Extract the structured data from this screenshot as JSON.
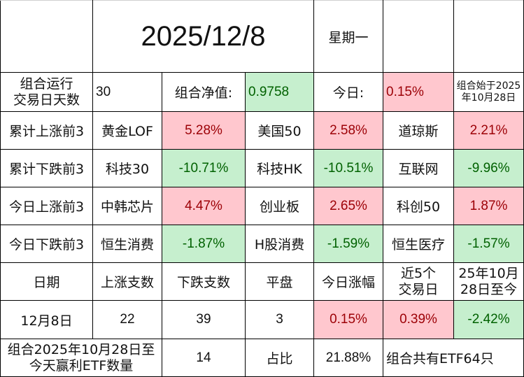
{
  "header": {
    "date": "2025/12/8",
    "weekday": "星期一"
  },
  "summary": {
    "run_days_label_line1": "组合运行",
    "run_days_label_line2": "交易日天数",
    "run_days": "30",
    "nav_label": "组合净值:",
    "nav_value": "0.9758",
    "today_label": "今日:",
    "today_value": "0.15%",
    "start_note_line1": "组合始于2025",
    "start_note_line2": "年10月28日"
  },
  "rank_rows": [
    {
      "label": "累计上涨前3",
      "items": [
        {
          "name": "黄金LOF",
          "value": "5.28%"
        },
        {
          "name": "美国50",
          "value": "2.58%"
        },
        {
          "name": "道琼斯",
          "value": "2.21%"
        }
      ]
    },
    {
      "label": "累计下跌前3",
      "items": [
        {
          "name": "科技30",
          "value": "-10.71%"
        },
        {
          "name": "科技HK",
          "value": "-10.51%"
        },
        {
          "name": "互联网",
          "value": "-9.96%"
        }
      ]
    },
    {
      "label": "今日上涨前3",
      "items": [
        {
          "name": "中韩芯片",
          "value": "4.47%"
        },
        {
          "name": "创业板",
          "value": "2.65%"
        },
        {
          "name": "科创50",
          "value": "1.87%"
        }
      ]
    },
    {
      "label": "今日下跌前3",
      "items": [
        {
          "name": "恒生消费",
          "value": "-1.87%"
        },
        {
          "name": "H股消费",
          "value": "-1.59%"
        },
        {
          "name": "恒生医疗",
          "value": "-1.57%"
        }
      ]
    }
  ],
  "stats": {
    "headers": {
      "date": "日期",
      "up": "上涨支数",
      "down": "下跌支数",
      "flat": "平盘",
      "today": "今日涨幅",
      "last5_line1": "近5个",
      "last5_line2": "交易日",
      "since_line1": "25年10月",
      "since_line2": "28日至今"
    },
    "row": {
      "date": "12月8日",
      "up": "22",
      "down": "39",
      "flat": "3",
      "today": "0.15%",
      "last5": "0.39%",
      "since": "-2.42%"
    }
  },
  "footer": {
    "label_line1": "组合2025年10月28日至",
    "label_line2": "今天赢利ETF数量",
    "count": "14",
    "ratio_label": "占比",
    "ratio_value": "21.88%",
    "total_note": "组合共有ETF64只"
  },
  "colors": {
    "positive_bg": "#ffc7ce",
    "positive_text": "#9c0006",
    "negative_bg": "#c6efce",
    "negative_text": "#006100"
  }
}
